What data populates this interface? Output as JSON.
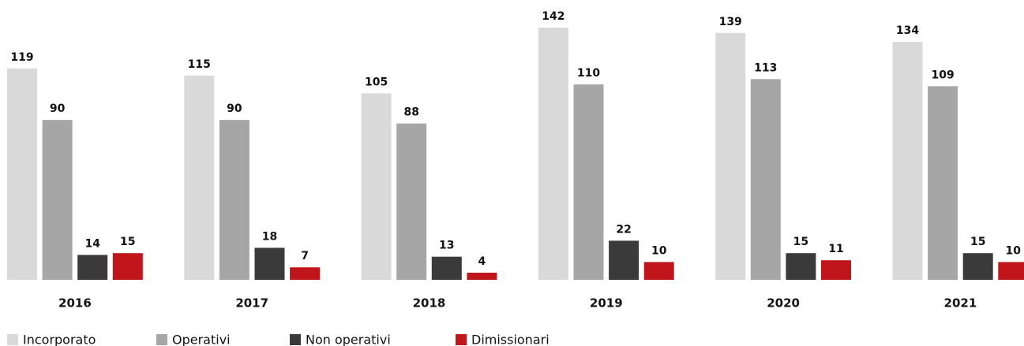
{
  "chart_data": {
    "type": "bar",
    "categories": [
      "2016",
      "2017",
      "2018",
      "2019",
      "2020",
      "2021"
    ],
    "series": [
      {
        "name": "Incorporato",
        "color": "#d9d9d9",
        "values": [
          119,
          115,
          105,
          142,
          139,
          134
        ]
      },
      {
        "name": "Operativi",
        "color": "#a6a6a6",
        "values": [
          90,
          90,
          88,
          110,
          113,
          109
        ]
      },
      {
        "name": "Non operativi",
        "color": "#3a3a3a",
        "values": [
          14,
          18,
          13,
          22,
          15,
          15
        ]
      },
      {
        "name": "Dimissionari",
        "color": "#c0161b",
        "values": [
          15,
          7,
          4,
          10,
          11,
          10
        ]
      }
    ]
  }
}
